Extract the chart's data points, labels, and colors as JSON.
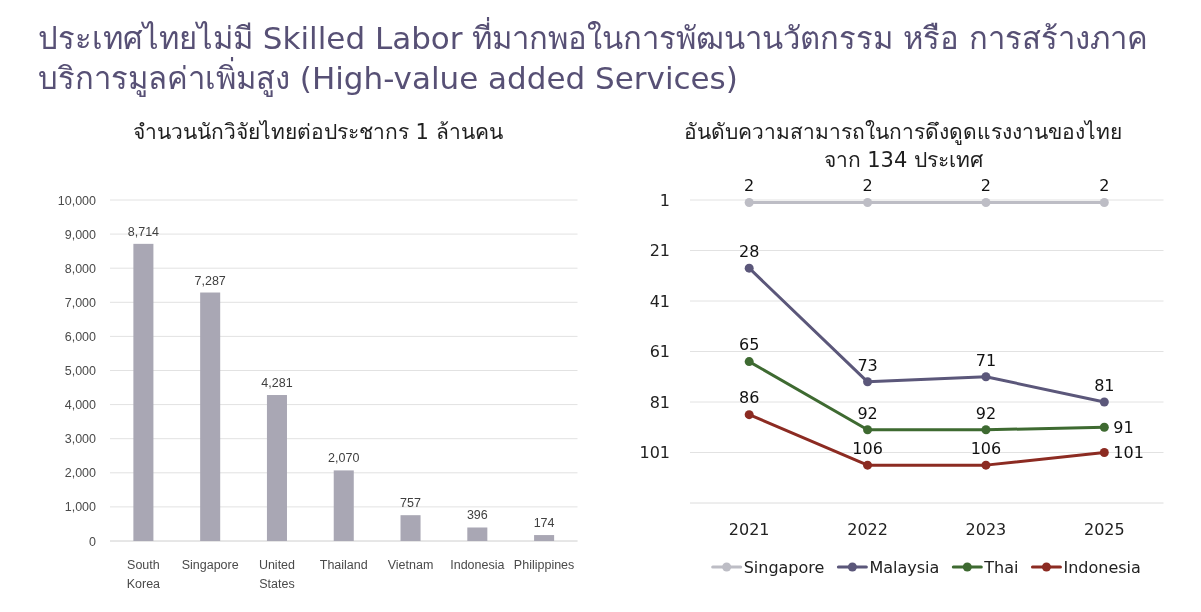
{
  "chart_data": [
    {
      "type": "other",
      "title": "ประเทศไทยไม่มี Skilled Labor ที่มากพอในการพัฒนานวัตกรรม หรือ การสร้างภาคบริการมูลค่าเพิ่มสูง (High-value added Services)"
    },
    {
      "type": "bar",
      "title": "จำนวนนักวิจัยไทยต่อประชากร 1 ล้านคน",
      "categories": [
        "South Korea",
        "Singapore",
        "United States",
        "Thailand",
        "Vietnam",
        "Indonesia",
        "Philippines"
      ],
      "values": [
        8714,
        7287,
        4281,
        2070,
        757,
        396,
        174
      ],
      "value_labels": [
        "8,714",
        "7,287",
        "4,281",
        "2,070",
        "757",
        "396",
        "174"
      ],
      "color": "#a9a7b4",
      "ylim": [
        0,
        10000
      ],
      "yticks": [
        0,
        {
          "value": 1000,
          "label": "1,000"
        },
        {
          "value": 2000,
          "label": "2,000"
        },
        {
          "value": 3000,
          "label": "3,000"
        },
        {
          "value": 4000,
          "label": "4,000"
        },
        {
          "value": 5000,
          "label": "5,000"
        },
        {
          "value": 6000,
          "label": "6,000"
        },
        {
          "value": 7000,
          "label": "7,000"
        },
        {
          "value": 8000,
          "label": "8,000"
        },
        {
          "value": 9000,
          "label": "9,000"
        },
        {
          "value": 10000,
          "label": "10,000"
        }
      ],
      "grid": "y"
    },
    {
      "type": "line",
      "title": "อันดับความสามารถในการดึงดูดแรงงานของไทย จาก 134 ประเทศ",
      "categories": [
        "2021",
        "2022",
        "2023",
        "2025"
      ],
      "series": [
        {
          "name": "Singapore",
          "color": "#bdbdc5",
          "values": [
            2,
            2,
            2,
            2
          ]
        },
        {
          "name": "Malaysia",
          "color": "#5b577a",
          "values": [
            28,
            73,
            71,
            81
          ]
        },
        {
          "name": "Thai",
          "color": "#3e6a31",
          "values": [
            65,
            92,
            92,
            91
          ]
        },
        {
          "name": "Indonesia",
          "color": "#8c2b22",
          "values": [
            86,
            106,
            106,
            101
          ]
        }
      ],
      "ylim": [
        121,
        1
      ],
      "yticks": [
        1,
        21,
        41,
        61,
        81,
        101
      ],
      "grid": "y",
      "legend": "bottom",
      "marker": "circle",
      "line_style": "solid",
      "data_labels": true
    }
  ]
}
